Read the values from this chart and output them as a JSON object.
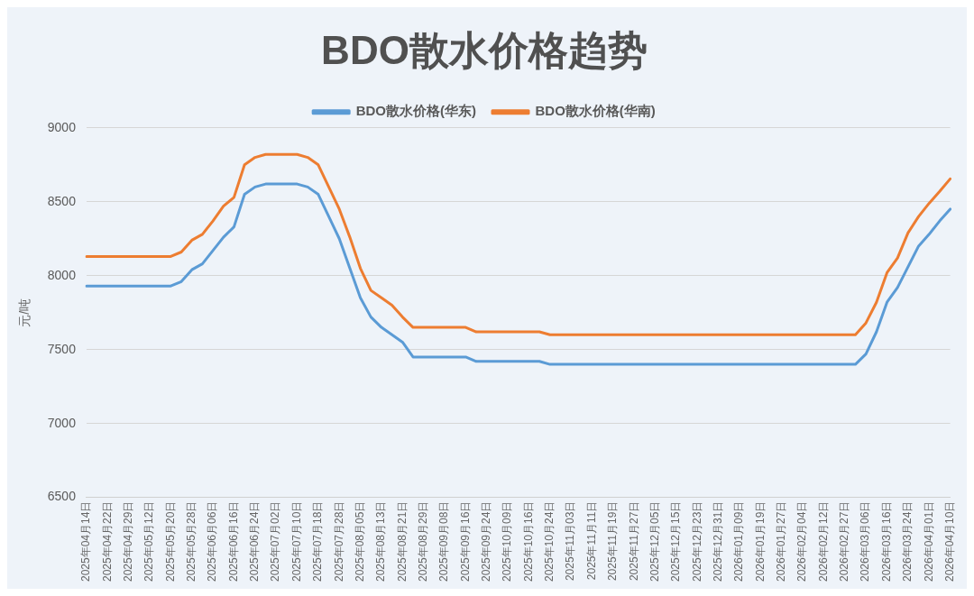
{
  "chart_data": {
    "type": "line",
    "title": "BDO散水价格趋势",
    "ylabel": "元/吨",
    "categories": [
      "2025年04月14日",
      null,
      "2025年04月22日",
      null,
      "2025年04月29日",
      null,
      "2025年05月12日",
      null,
      "2025年05月20日",
      null,
      "2025年05月28日",
      null,
      "2025年06月06日",
      null,
      "2025年06月16日",
      null,
      "2025年06月24日",
      null,
      "2025年07月02日",
      null,
      "2025年07月10日",
      null,
      "2025年07月18日",
      null,
      "2025年07月28日",
      null,
      "2025年08月05日",
      null,
      "2025年08月13日",
      null,
      "2025年08月21日",
      null,
      "2025年08月29日",
      null,
      "2025年09月08日",
      null,
      "2025年09月16日",
      null,
      "2025年09月24日",
      null,
      "2025年10月09日",
      null,
      "2025年10月16日",
      null,
      "2025年10月24日",
      null,
      "2025年11月03日",
      null,
      "2025年11月11日",
      null,
      "2025年11月19日",
      null,
      "2025年11月27日",
      null,
      "2025年12月05日",
      null,
      "2025年12月15日",
      null,
      "2025年12月23日",
      null,
      "2025年12月31日",
      null,
      "2026年01月09日",
      null,
      "2026年01月19日",
      null,
      "2026年01月27日",
      null,
      "2026年02月04日",
      null,
      "2026年02月12日",
      null,
      "2026年02月27日",
      null,
      "2026年03月06日",
      null,
      "2026年03月16日",
      null,
      "2026年03月24日",
      null,
      "2026年04月01日",
      null,
      "2026年04月10日"
    ],
    "series": [
      {
        "name": "BDO散水价格(华东)",
        "color": "#5b9bd5",
        "values": [
          7930,
          7930,
          7930,
          7930,
          7930,
          7930,
          7930,
          7930,
          7930,
          7960,
          8040,
          8080,
          8170,
          8260,
          8330,
          8550,
          8600,
          8620,
          8620,
          8620,
          8620,
          8600,
          8550,
          8400,
          8250,
          8050,
          7850,
          7720,
          7650,
          7600,
          7550,
          7450,
          7450,
          7450,
          7450,
          7450,
          7450,
          7420,
          7420,
          7420,
          7420,
          7420,
          7420,
          7420,
          7400,
          7400,
          7400,
          7400,
          7400,
          7400,
          7400,
          7400,
          7400,
          7400,
          7400,
          7400,
          7400,
          7400,
          7400,
          7400,
          7400,
          7400,
          7400,
          7400,
          7400,
          7400,
          7400,
          7400,
          7400,
          7400,
          7400,
          7400,
          7400,
          7400,
          7470,
          7620,
          7820,
          7920,
          8060,
          8200,
          8280,
          8370,
          8450
        ]
      },
      {
        "name": "BDO散水价格(华南)",
        "color": "#ed7d31",
        "values": [
          8130,
          8130,
          8130,
          8130,
          8130,
          8130,
          8130,
          8130,
          8130,
          8160,
          8240,
          8280,
          8370,
          8470,
          8530,
          8750,
          8800,
          8820,
          8820,
          8820,
          8820,
          8800,
          8750,
          8600,
          8450,
          8260,
          8050,
          7900,
          7850,
          7800,
          7720,
          7650,
          7650,
          7650,
          7650,
          7650,
          7650,
          7620,
          7620,
          7620,
          7620,
          7620,
          7620,
          7620,
          7600,
          7600,
          7600,
          7600,
          7600,
          7600,
          7600,
          7600,
          7600,
          7600,
          7600,
          7600,
          7600,
          7600,
          7600,
          7600,
          7600,
          7600,
          7600,
          7600,
          7600,
          7600,
          7600,
          7600,
          7600,
          7600,
          7600,
          7600,
          7600,
          7600,
          7680,
          7820,
          8020,
          8120,
          8290,
          8400,
          8490,
          8570,
          8655
        ]
      }
    ],
    "ylim": [
      6500,
      9000
    ],
    "yticks": [
      6500,
      7000,
      7500,
      8000,
      8500,
      9000
    ],
    "grid": "y",
    "legend": "top",
    "marker": "none",
    "line_style": "solid"
  }
}
